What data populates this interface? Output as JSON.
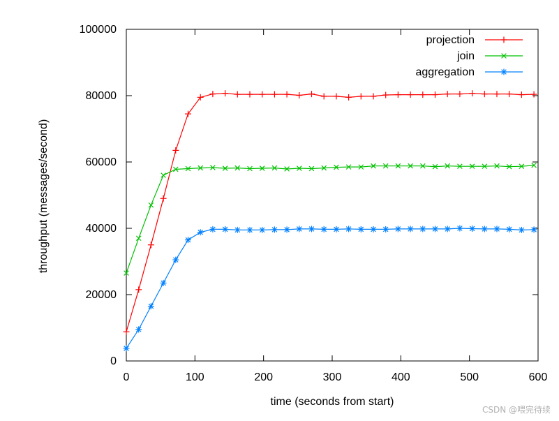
{
  "chart_data": {
    "type": "line",
    "xlabel": "time (seconds from start)",
    "ylabel": "throughput (messages/second)",
    "xlim": [
      0,
      600
    ],
    "ylim": [
      0,
      100000
    ],
    "xticks": [
      0,
      100,
      200,
      300,
      400,
      500,
      600
    ],
    "yticks": [
      0,
      20000,
      40000,
      60000,
      80000,
      100000
    ],
    "grid": false,
    "legend_position": "top-right",
    "series": [
      {
        "name": "projection",
        "color": "#ff0000",
        "marker": "plus",
        "x": [
          0,
          18,
          36,
          54,
          72,
          90,
          108,
          126,
          144,
          162,
          180,
          198,
          216,
          234,
          252,
          270,
          288,
          306,
          324,
          342,
          360,
          378,
          396,
          414,
          432,
          450,
          468,
          486,
          504,
          522,
          540,
          558,
          576,
          594
        ],
        "y": [
          8800,
          21500,
          35000,
          49000,
          63500,
          74500,
          79500,
          80500,
          80700,
          80400,
          80400,
          80400,
          80400,
          80400,
          80100,
          80500,
          79800,
          79800,
          79500,
          79800,
          79800,
          80200,
          80300,
          80300,
          80300,
          80300,
          80500,
          80500,
          80700,
          80500,
          80500,
          80500,
          80300,
          80400
        ]
      },
      {
        "name": "join",
        "color": "#00c000",
        "marker": "x",
        "x": [
          0,
          18,
          36,
          54,
          72,
          90,
          108,
          126,
          144,
          162,
          180,
          198,
          216,
          234,
          252,
          270,
          288,
          306,
          324,
          342,
          360,
          378,
          396,
          414,
          432,
          450,
          468,
          486,
          504,
          522,
          540,
          558,
          576,
          594
        ],
        "y": [
          26500,
          37000,
          47000,
          56000,
          57800,
          58000,
          58200,
          58300,
          58100,
          58200,
          58000,
          58100,
          58200,
          57900,
          58100,
          58000,
          58200,
          58400,
          58500,
          58500,
          58800,
          58800,
          58800,
          58800,
          58800,
          58600,
          58800,
          58700,
          58700,
          58700,
          58800,
          58600,
          58700,
          59000
        ]
      },
      {
        "name": "aggregation",
        "color": "#0080ff",
        "marker": "star",
        "x": [
          0,
          18,
          36,
          54,
          72,
          90,
          108,
          126,
          144,
          162,
          180,
          198,
          216,
          234,
          252,
          270,
          288,
          306,
          324,
          342,
          360,
          378,
          396,
          414,
          432,
          450,
          468,
          486,
          504,
          522,
          540,
          558,
          576,
          594
        ],
        "y": [
          3800,
          9500,
          16500,
          23500,
          30500,
          36500,
          38800,
          39700,
          39700,
          39500,
          39500,
          39500,
          39600,
          39600,
          39800,
          39800,
          39700,
          39700,
          39800,
          39700,
          39700,
          39700,
          39800,
          39800,
          39800,
          39800,
          39800,
          40000,
          39900,
          39800,
          39800,
          39700,
          39500,
          39600
        ]
      }
    ]
  },
  "watermark": "CSDN @喂完待续"
}
